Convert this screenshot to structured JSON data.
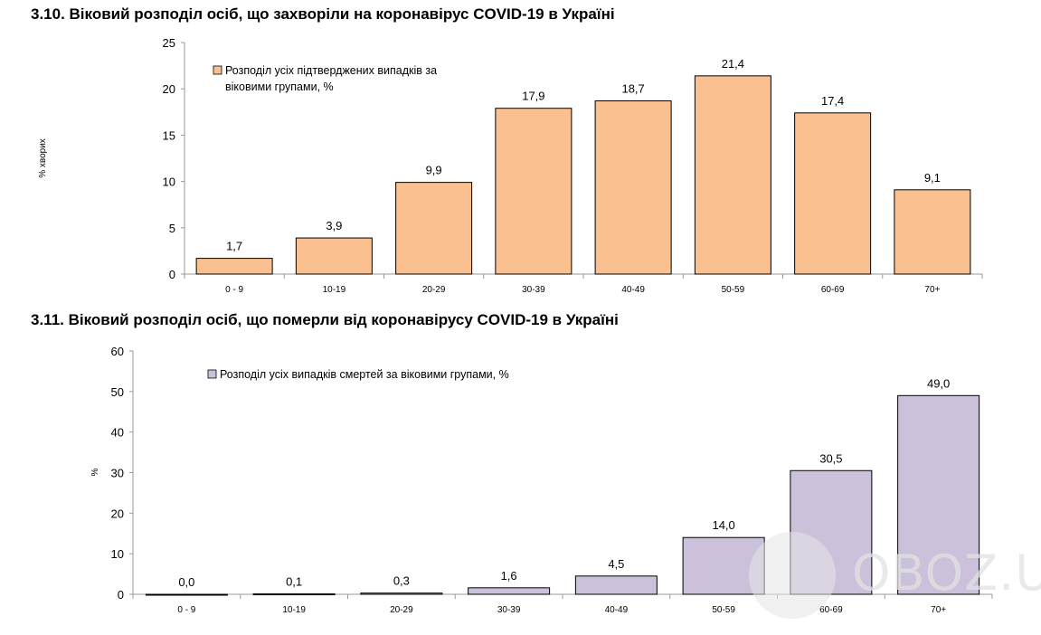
{
  "watermark": "OBOZ.UA",
  "chart_data": [
    {
      "type": "bar",
      "title": "3.10.  Віковий розподіл осіб, що захворіли на коронавірус COVID-19 в Україні",
      "ylabel": "% хворих",
      "xlabel": "",
      "categories": [
        "0 - 9",
        "10-19",
        "20-29",
        "30-39",
        "40-49",
        "50-59",
        "60-69",
        "70+"
      ],
      "series": [
        {
          "name": "Розподіл усіх підтверджених випадків за віковими групами, %",
          "values": [
            1.7,
            3.9,
            9.9,
            17.9,
            18.7,
            21.4,
            17.4,
            9.1
          ],
          "labels": [
            "1,7",
            "3,9",
            "9,9",
            "17,9",
            "18,7",
            "21,4",
            "17,4",
            "9,1"
          ]
        }
      ],
      "ylim": [
        0,
        25
      ],
      "yticks": [
        0,
        5,
        10,
        15,
        20,
        25
      ],
      "legend": "top-left",
      "grid": false,
      "color": "#FAC090"
    },
    {
      "type": "bar",
      "title": "3.11.  Віковий розподіл осіб, що померли від коронавірусу COVID-19 в Україні",
      "ylabel": "%",
      "xlabel": "",
      "categories": [
        "0 - 9",
        "10-19",
        "20-29",
        "30-39",
        "40-49",
        "50-59",
        "60-69",
        "70+"
      ],
      "series": [
        {
          "name": "Розподіл усіх випадків смертей за віковими групами, %",
          "values": [
            0.0,
            0.1,
            0.3,
            1.6,
            4.5,
            14.0,
            30.5,
            49.0
          ],
          "labels": [
            "0,0",
            "0,1",
            "0,3",
            "1,6",
            "4,5",
            "14,0",
            "30,5",
            "49,0"
          ]
        }
      ],
      "ylim": [
        0,
        60
      ],
      "yticks": [
        0,
        10,
        20,
        30,
        40,
        50,
        60
      ],
      "legend": "top-left",
      "grid": false,
      "color": "#CCC1DA"
    }
  ]
}
